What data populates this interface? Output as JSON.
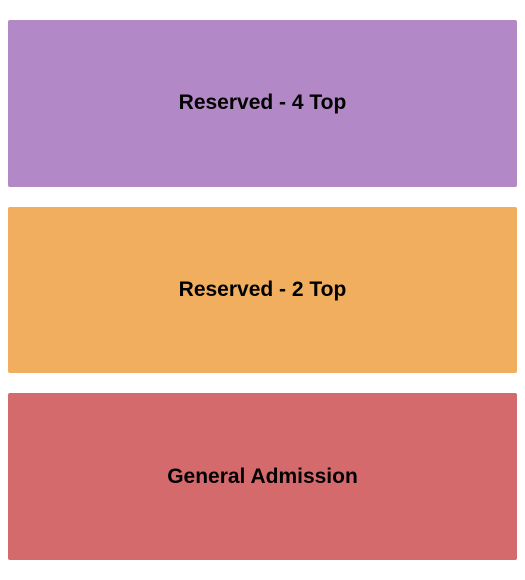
{
  "seating_chart": {
    "type": "infographic",
    "background_color": "#ffffff",
    "container_width": 525,
    "container_height": 580,
    "section_gap": 20,
    "label_fontsize": 21,
    "label_fontweight": "bold",
    "label_color": "#000000",
    "sections": [
      {
        "id": "reserved-4-top",
        "label": "Reserved - 4 Top",
        "fill_color": "#b289c6"
      },
      {
        "id": "reserved-2-top",
        "label": "Reserved - 2 Top",
        "fill_color": "#f0ae5e"
      },
      {
        "id": "general-admission",
        "label": "General Admission",
        "fill_color": "#d56a6d"
      }
    ]
  }
}
